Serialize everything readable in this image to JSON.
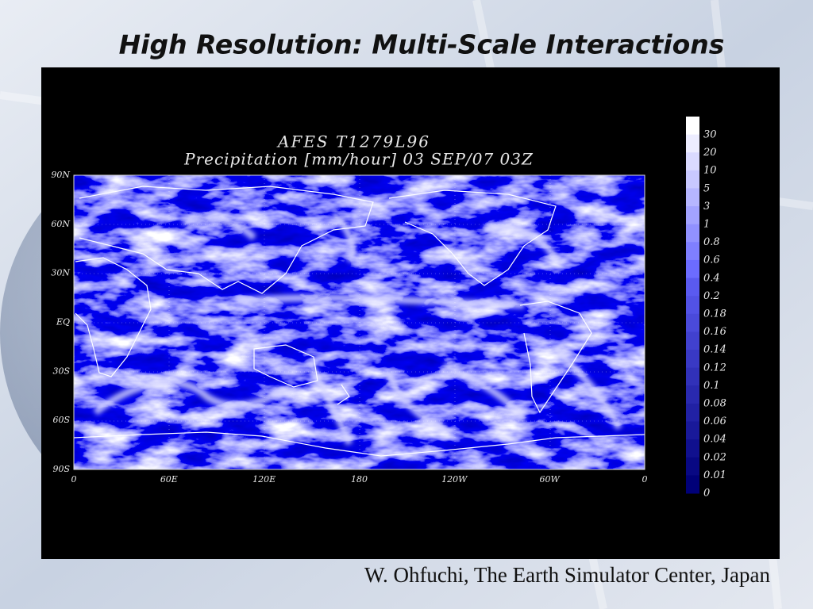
{
  "slide": {
    "title": "High Resolution: Multi-Scale Interactions",
    "credit": "W. Ohfuchi, The Earth Simulator Center, Japan",
    "figure": {
      "title_lines": [
        "AFES T1279L96",
        "Precipitation [mm/hour] 03 SEP/07 03Z"
      ],
      "lat_labels": [
        "90N",
        "60N",
        "30N",
        "EQ",
        "30S",
        "60S",
        "90S"
      ],
      "lon_labels": [
        "0",
        "60E",
        "120E",
        "180",
        "120W",
        "60W",
        "0"
      ],
      "colorbar_labels": [
        "30",
        "20",
        "10",
        "5",
        "3",
        "1",
        "0.8",
        "0.6",
        "0.4",
        "0.2",
        "0.18",
        "0.16",
        "0.14",
        "0.12",
        "0.1",
        "0.08",
        "0.06",
        "0.04",
        "0.02",
        "0.01",
        "0"
      ]
    }
  }
}
